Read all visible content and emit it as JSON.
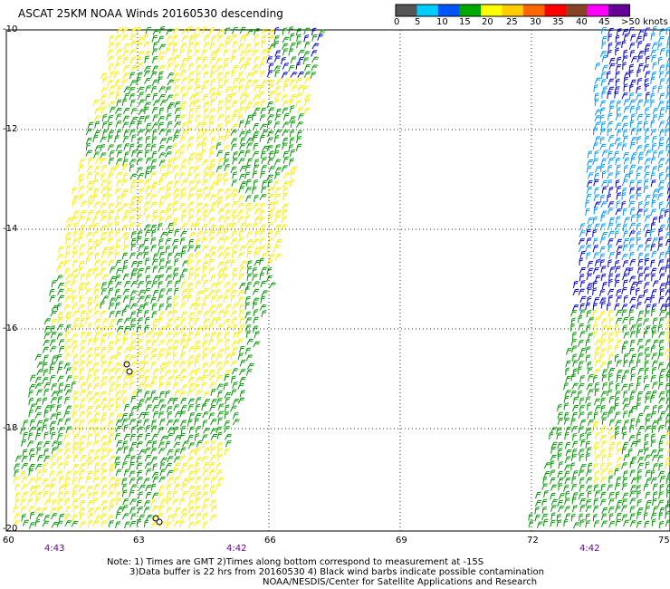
{
  "title": "ASCAT 25KM NOAA Winds 20160530 descending",
  "colorbar": {
    "labels": [
      "0",
      "5",
      "10",
      "15",
      "20",
      "25",
      "30",
      "35",
      "40",
      "45",
      ">50 knots"
    ],
    "colors": [
      "#555555",
      "#00ccff",
      "#0055ff",
      "#00aa00",
      "#ffff00",
      "#ffcc00",
      "#ff6600",
      "#ff0000",
      "#884422",
      "#ff00ff",
      "#660099"
    ]
  },
  "axes": {
    "lat_labels": [
      "-10",
      "-12",
      "-14",
      "-16",
      "-18",
      "-20"
    ],
    "lon_labels": [
      "60",
      "63",
      "66",
      "69",
      "72",
      "75"
    ]
  },
  "times": [
    "4:43",
    "4:42",
    "4:42"
  ],
  "notes": [
    "Note: 1) Times are GMT 2)Times along bottom correspond to measurement at -15S",
    "3)Data buffer is 22 hrs from 20160530 4) Black wind barbs indicate possible contamination",
    "NOAA/NESDIS/Center for Satellite Applications and Research"
  ],
  "barb_colors": {
    "green": "#009900",
    "yellow": "#ffee00",
    "light_blue": "#0099ff",
    "blue": "#0000cc",
    "grid": "#333333"
  }
}
